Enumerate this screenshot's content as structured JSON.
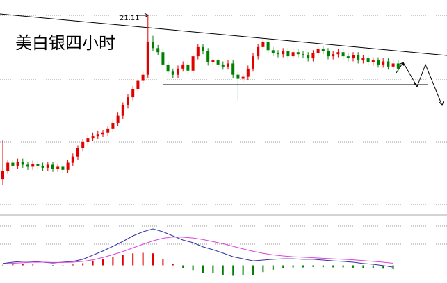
{
  "chart_data": [
    {
      "type": "candlestick",
      "title": "美白银四小时",
      "ylim": [
        19.25,
        21.25
      ],
      "up_color": "#e00000",
      "down_color": "#008000",
      "open": [
        19.5,
        19.58,
        19.66,
        19.63,
        19.67,
        19.64,
        19.62,
        19.65,
        19.63,
        19.61,
        19.64,
        19.6,
        19.62,
        19.59,
        19.66,
        19.72,
        19.8,
        19.86,
        19.9,
        19.92,
        19.94,
        19.95,
        19.99,
        20.05,
        20.12,
        20.22,
        20.3,
        20.38,
        20.46,
        20.52,
        20.84,
        20.78,
        20.74,
        20.62,
        20.55,
        20.52,
        20.58,
        20.62,
        20.56,
        20.7,
        20.79,
        20.75,
        20.64,
        20.66,
        20.62,
        20.6,
        20.63,
        20.52,
        20.48,
        20.5,
        20.58,
        20.7,
        20.79,
        20.84,
        20.76,
        20.73,
        20.72,
        20.75,
        20.7,
        20.74,
        20.72,
        20.71,
        20.68,
        20.73,
        20.77,
        20.75,
        20.7,
        20.72,
        20.74,
        20.7,
        20.68,
        20.71,
        20.66,
        20.68,
        20.64,
        20.66,
        20.62,
        20.65,
        20.6,
        20.63
      ],
      "high": [
        19.88,
        19.69,
        19.69,
        19.7,
        19.7,
        19.67,
        19.68,
        19.68,
        19.66,
        19.67,
        19.67,
        19.65,
        19.65,
        19.69,
        19.75,
        19.83,
        19.89,
        19.93,
        19.95,
        19.97,
        19.98,
        20.02,
        20.08,
        20.15,
        20.25,
        20.33,
        20.41,
        20.49,
        20.55,
        21.11,
        20.9,
        20.81,
        20.77,
        20.65,
        20.58,
        20.61,
        20.65,
        20.65,
        20.73,
        20.82,
        20.82,
        20.78,
        20.69,
        20.69,
        20.65,
        20.66,
        20.66,
        20.55,
        20.53,
        20.61,
        20.73,
        20.82,
        20.87,
        20.87,
        20.79,
        20.76,
        20.78,
        20.78,
        20.77,
        20.77,
        20.75,
        20.74,
        20.76,
        20.8,
        20.8,
        20.78,
        20.75,
        20.77,
        20.77,
        20.73,
        20.74,
        20.74,
        20.71,
        20.71,
        20.69,
        20.69,
        20.68,
        20.68,
        20.66,
        20.66
      ],
      "low": [
        19.44,
        19.55,
        19.6,
        19.6,
        19.61,
        19.59,
        19.59,
        19.6,
        19.58,
        19.58,
        19.57,
        19.57,
        19.56,
        19.56,
        19.63,
        19.69,
        19.77,
        19.83,
        19.87,
        19.89,
        19.91,
        19.92,
        19.96,
        20.02,
        20.09,
        20.19,
        20.27,
        20.35,
        20.43,
        20.49,
        20.75,
        20.71,
        20.59,
        20.52,
        20.49,
        20.49,
        20.55,
        20.53,
        20.53,
        20.67,
        20.72,
        20.61,
        20.61,
        20.59,
        20.57,
        20.57,
        20.49,
        20.27,
        20.45,
        20.47,
        20.55,
        20.67,
        20.76,
        20.73,
        20.7,
        20.69,
        20.69,
        20.67,
        20.67,
        20.69,
        20.68,
        20.65,
        20.65,
        20.7,
        20.72,
        20.67,
        20.67,
        20.69,
        20.67,
        20.65,
        20.65,
        20.63,
        20.63,
        20.61,
        20.61,
        20.59,
        20.59,
        20.57,
        20.57,
        20.55
      ],
      "close": [
        19.58,
        19.66,
        19.63,
        19.67,
        19.64,
        19.62,
        19.65,
        19.63,
        19.61,
        19.64,
        19.6,
        19.62,
        19.59,
        19.66,
        19.72,
        19.8,
        19.86,
        19.9,
        19.92,
        19.94,
        19.95,
        19.99,
        20.05,
        20.12,
        20.22,
        20.3,
        20.38,
        20.46,
        20.52,
        20.84,
        20.78,
        20.74,
        20.62,
        20.55,
        20.52,
        20.58,
        20.62,
        20.56,
        20.7,
        20.79,
        20.75,
        20.64,
        20.66,
        20.62,
        20.6,
        20.63,
        20.52,
        20.48,
        20.5,
        20.58,
        20.7,
        20.79,
        20.84,
        20.76,
        20.73,
        20.72,
        20.75,
        20.7,
        20.74,
        20.72,
        20.71,
        20.68,
        20.73,
        20.77,
        20.75,
        20.7,
        20.72,
        20.74,
        20.7,
        20.68,
        20.71,
        20.66,
        20.68,
        20.64,
        20.66,
        20.62,
        20.65,
        20.6,
        20.63,
        20.58
      ]
    },
    {
      "type": "macd",
      "ylim": [
        -0.06,
        0.18
      ],
      "series": [
        {
          "color": "#3030a0",
          "values": [
            0.007,
            0.012,
            0.015,
            0.015,
            0.012,
            0.009,
            0.012,
            0.015,
            0.023,
            0.039,
            0.055,
            0.073,
            0.092,
            0.113,
            0.129,
            0.14,
            0.129,
            0.113,
            0.097,
            0.087,
            0.071,
            0.06,
            0.047,
            0.033,
            0.025,
            0.017,
            0.02,
            0.023,
            0.025,
            0.025,
            0.023,
            0.023,
            0.02,
            0.017,
            0.015,
            0.012,
            0.007,
            0.004,
            -0.001,
            -0.007
          ]
        },
        {
          "color": "#e040e0",
          "values": [
            0.005,
            0.008,
            0.01,
            0.012,
            0.012,
            0.011,
            0.011,
            0.012,
            0.015,
            0.021,
            0.03,
            0.041,
            0.053,
            0.067,
            0.081,
            0.094,
            0.104,
            0.109,
            0.108,
            0.105,
            0.099,
            0.091,
            0.083,
            0.073,
            0.063,
            0.054,
            0.046,
            0.04,
            0.036,
            0.033,
            0.031,
            0.029,
            0.027,
            0.025,
            0.023,
            0.021,
            0.018,
            0.015,
            0.012,
            0.008
          ]
        }
      ],
      "bars": {
        "up_color": "#e00000",
        "down_color": "#008000",
        "values": [
          0.002,
          0.004,
          0.005,
          0.003,
          0,
          -0.002,
          0.001,
          0.003,
          0.008,
          0.018,
          0.025,
          0.032,
          0.039,
          0.046,
          0.048,
          0.046,
          0.025,
          0.004,
          -0.011,
          -0.018,
          -0.028,
          -0.031,
          -0.036,
          -0.04,
          -0.038,
          -0.037,
          -0.026,
          -0.017,
          -0.011,
          -0.008,
          -0.008,
          -0.006,
          -0.007,
          -0.008,
          -0.008,
          -0.009,
          -0.011,
          -0.011,
          -0.013,
          -0.015
        ]
      }
    }
  ]
}
